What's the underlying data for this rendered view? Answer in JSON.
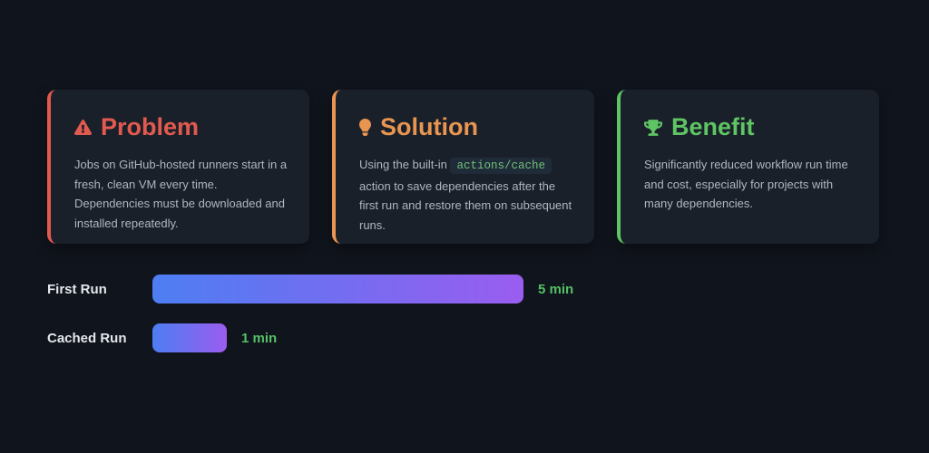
{
  "page": {
    "background": "#10141c",
    "card_background": "#1a202a"
  },
  "cards": [
    {
      "id": "problem",
      "title": "Problem",
      "icon": "warning-icon",
      "accent": "#e25a4f",
      "body_lines": [
        "Jobs on GitHub-hosted runners start in a fresh, clean VM every time.",
        "Dependencies must be downloaded and installed repeatedly."
      ]
    },
    {
      "id": "solution",
      "title": "Solution",
      "icon": "lightbulb-icon",
      "accent": "#e89551",
      "body_prefix": "Using the built-in ",
      "code": "actions/cache",
      "body_suffix": " action to save dependencies after the first run and restore them on subsequent runs.",
      "code_color": "#72c177",
      "code_background": "#202b39"
    },
    {
      "id": "benefit",
      "title": "Benefit",
      "icon": "trophy-icon",
      "accent": "#5ec464",
      "body": "Significantly reduced workflow run time and cost, especially for projects with many dependencies."
    }
  ],
  "chart_data": {
    "type": "bar",
    "orientation": "horizontal",
    "categories": [
      "First Run",
      "Cached Run"
    ],
    "values": [
      5,
      1
    ],
    "unit": "min",
    "value_labels": [
      "5 min",
      "1 min"
    ],
    "max_value": 5,
    "bar_gradient": [
      "#4d7ef2",
      "#9a5df0"
    ],
    "value_color": "#55c065",
    "label_color": "#e4e7eb",
    "grid": false,
    "legend": false
  }
}
